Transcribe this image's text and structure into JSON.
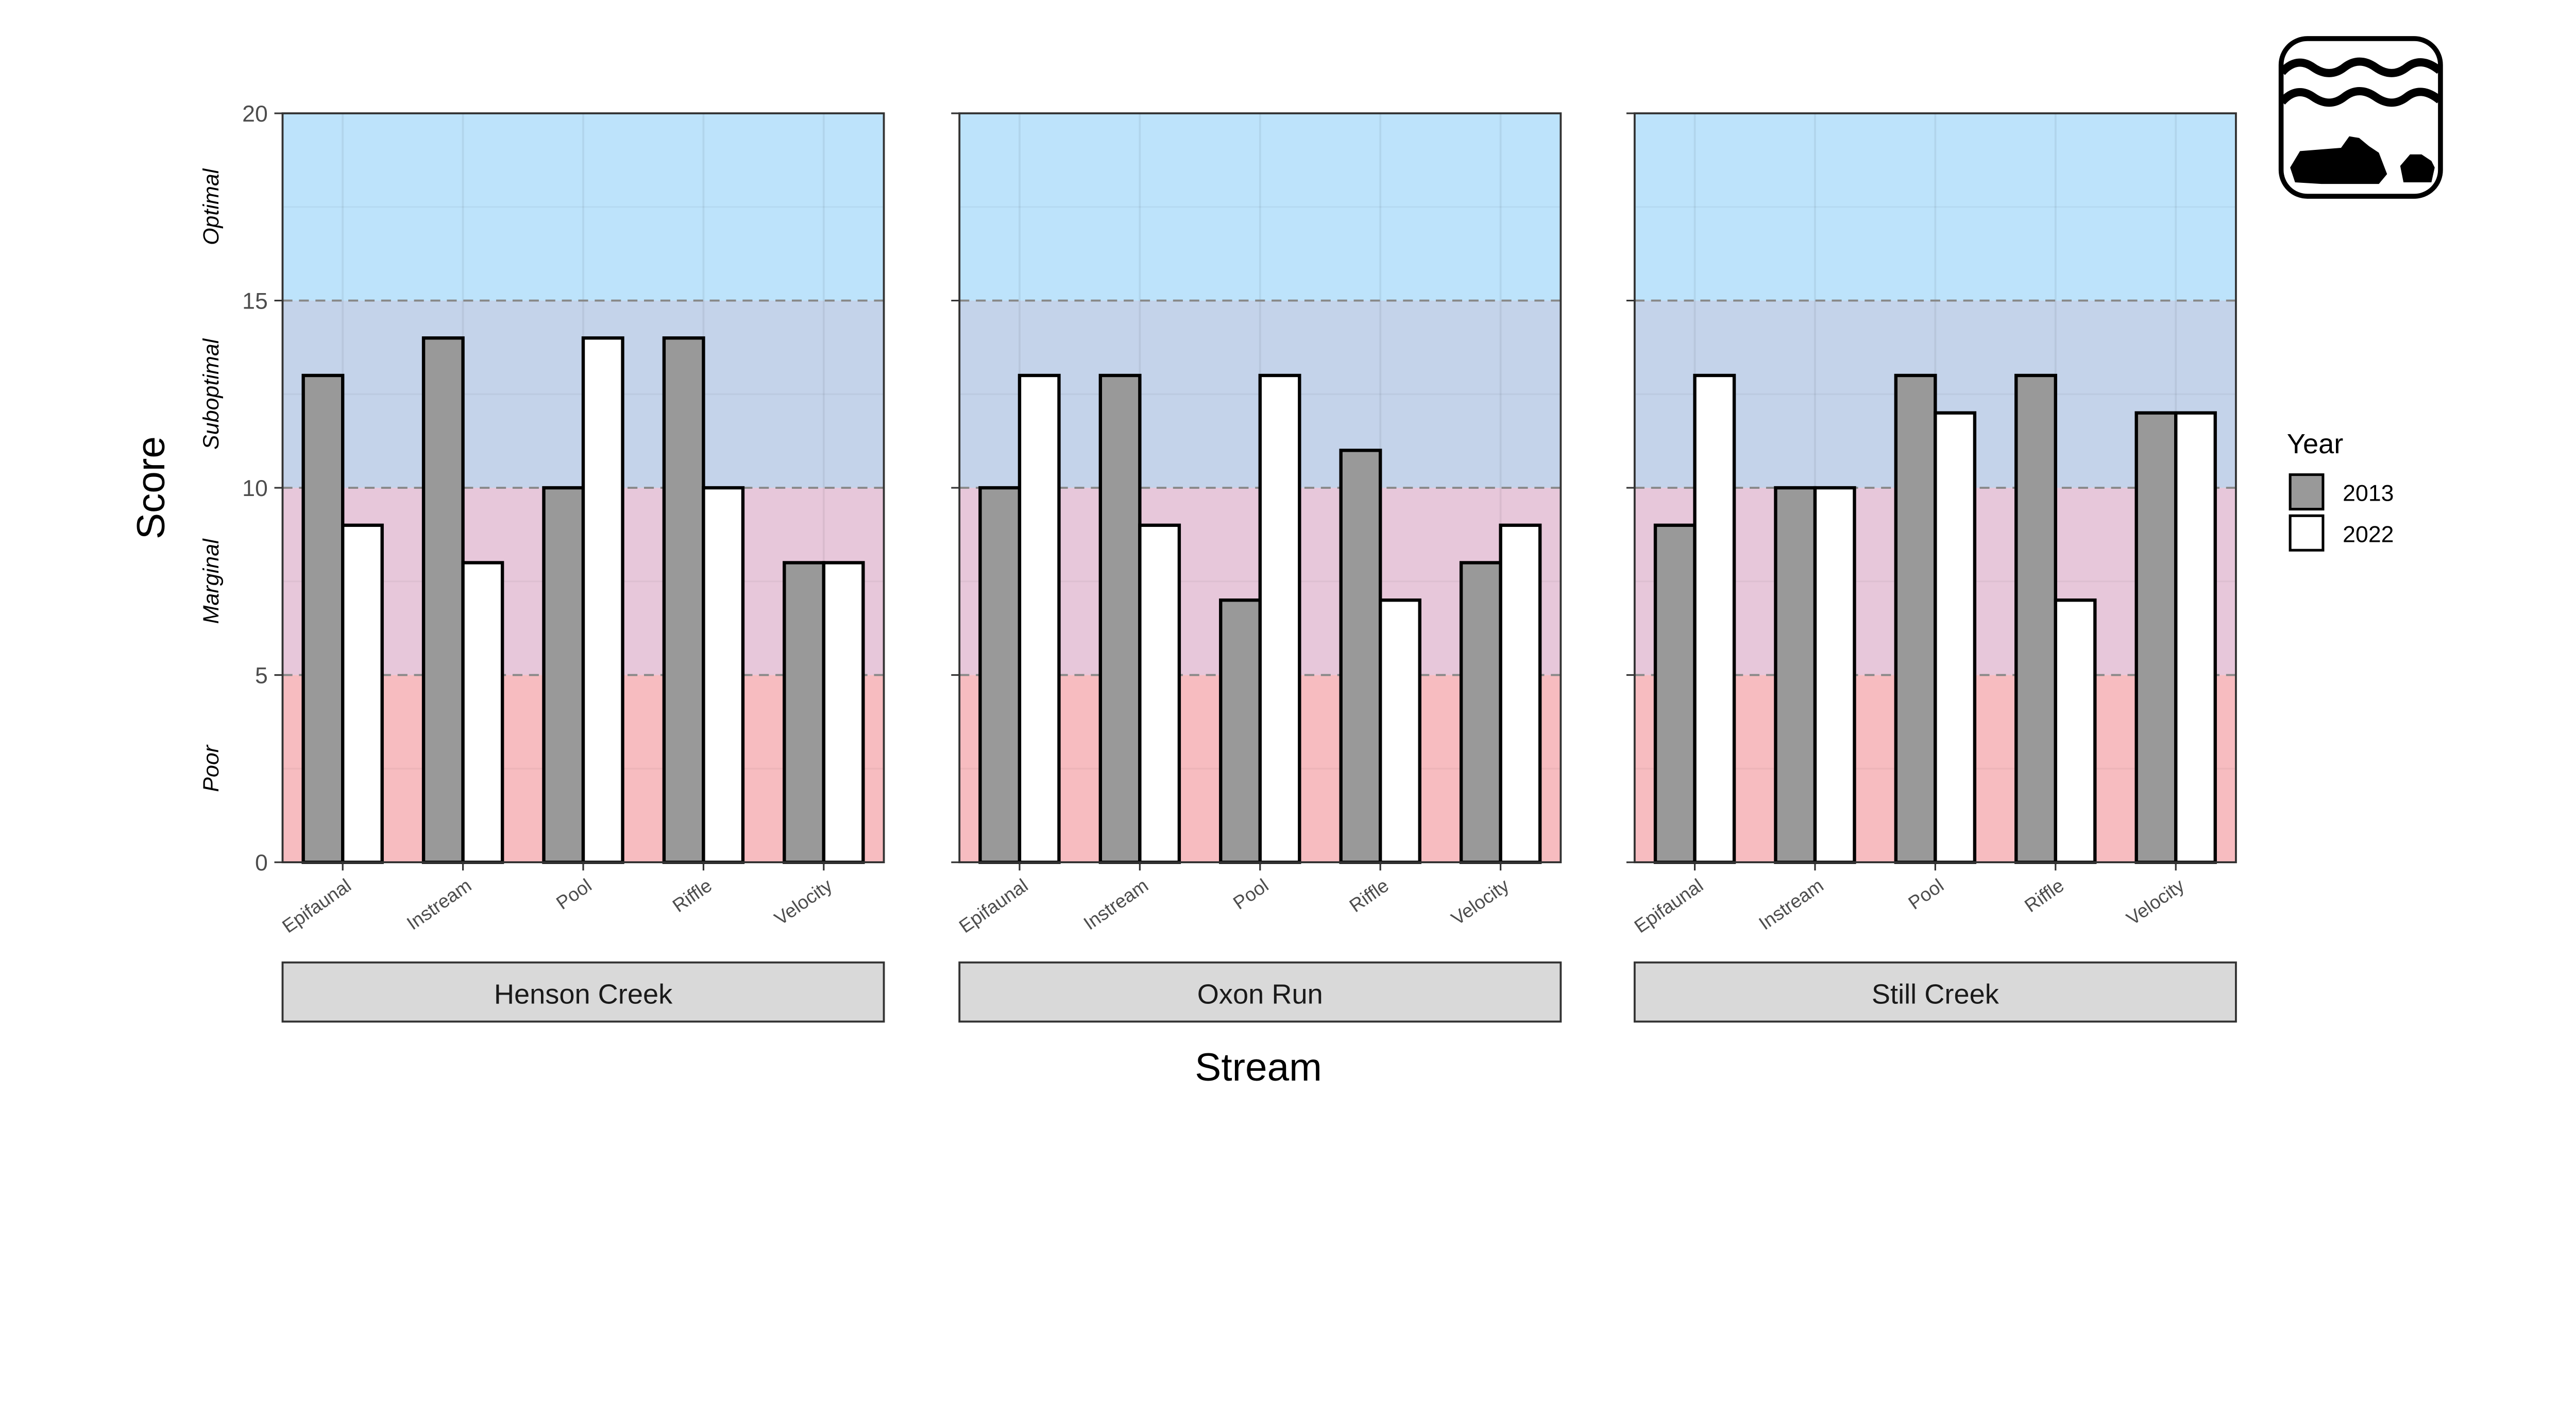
{
  "chart_data": {
    "type": "bar",
    "xlabel": "Stream",
    "ylabel": "Score",
    "ylim": [
      0,
      20
    ],
    "yticks": [
      "0",
      "5",
      "10",
      "15",
      "20"
    ],
    "grid": true,
    "categories": [
      "Epifaunal",
      "Instream",
      "Pool",
      "Riffle",
      "Velocity"
    ],
    "bands": [
      {
        "label": "Poor",
        "from": 0,
        "to": 5,
        "color": "#f7bcc0"
      },
      {
        "label": "Marginal",
        "from": 5,
        "to": 10,
        "color": "#e7c7da"
      },
      {
        "label": "Suboptimal",
        "from": 10,
        "to": 15,
        "color": "#c4d3ea"
      },
      {
        "label": "Optimal",
        "from": 15,
        "to": 20,
        "color": "#bde3fb"
      }
    ],
    "legend": {
      "title": "Year",
      "placement": "right"
    },
    "series_colors": {
      "2013": "#999999",
      "2022": "#ffffff"
    },
    "panels": [
      {
        "title": "Henson Creek",
        "series": [
          {
            "name": "2013",
            "values": [
              13,
              14,
              10,
              14,
              8
            ]
          },
          {
            "name": "2022",
            "values": [
              9,
              8,
              14,
              10,
              8
            ]
          }
        ]
      },
      {
        "title": "Oxon Run",
        "series": [
          {
            "name": "2013",
            "values": [
              10,
              13,
              7,
              11,
              8
            ]
          },
          {
            "name": "2022",
            "values": [
              13,
              9,
              13,
              7,
              9
            ]
          }
        ]
      },
      {
        "title": "Still Creek",
        "series": [
          {
            "name": "2013",
            "values": [
              9,
              10,
              13,
              13,
              12
            ]
          },
          {
            "name": "2022",
            "values": [
              13,
              10,
              12,
              7,
              12
            ]
          }
        ]
      }
    ]
  },
  "logo": {
    "icon": "stream-habitat-icon"
  }
}
